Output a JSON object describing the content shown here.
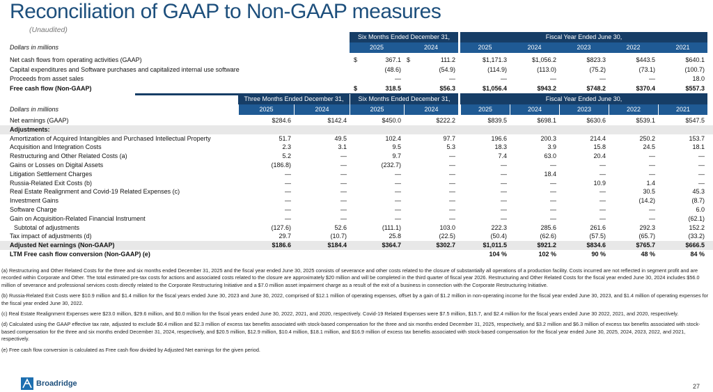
{
  "title": "Reconciliation of GAAP to Non-GAAP measures",
  "subtitle": "(Unaudited)",
  "table1": {
    "group_headers": {
      "six_months": "Six Months Ended December 31,",
      "fiscal_year": "Fiscal Year Ended June 30,"
    },
    "units_label": "Dollars in millions",
    "years": {
      "six_months": [
        "2025",
        "2024"
      ],
      "fiscal_year": [
        "2025",
        "2024",
        "2023",
        "2022",
        "2021"
      ]
    },
    "rows": [
      {
        "label": "Net cash flows from operating activities (GAAP)",
        "dollar": "$",
        "six_months": [
          "367.1",
          "111.2"
        ],
        "fiscal_year": [
          "$1,171.3",
          "$1,056.2",
          "$823.3",
          "$443.5",
          "$640.1"
        ]
      },
      {
        "label": "Capital expenditures and Software purchases and capitalized internal use software",
        "six_months": [
          "(48.6)",
          "(54.9)"
        ],
        "fiscal_year": [
          "(114.9)",
          "(113.0)",
          "(75.2)",
          "(73.1)",
          "(100.7)"
        ]
      },
      {
        "label": "Proceeds from asset sales",
        "six_months": [
          "—",
          "—"
        ],
        "fiscal_year": [
          "—",
          "—",
          "—",
          "—",
          "18.0"
        ]
      },
      {
        "label": "Free cash flow (Non-GAAP)",
        "bold": true,
        "dollar": "$",
        "six_months": [
          "318.5",
          "$56.3"
        ],
        "fiscal_year": [
          "$1,056.4",
          "$943.2",
          "$748.2",
          "$370.4",
          "$557.3"
        ]
      }
    ]
  },
  "table2": {
    "group_headers": {
      "three_months": "Three Months Ended December 31,",
      "six_months": "Six Months Ended December 31,",
      "fiscal_year": "Fiscal Year Ended June 30,"
    },
    "units_label": "Dollars in millions",
    "years": {
      "three_months": [
        "2025",
        "2024"
      ],
      "six_months": [
        "2025",
        "2024"
      ],
      "fiscal_year": [
        "2025",
        "2024",
        "2023",
        "2022",
        "2021"
      ]
    },
    "rows": [
      {
        "label": "Net earnings (GAAP)",
        "values": [
          "$284.6",
          "$142.4",
          "$450.0",
          "$222.2",
          "$839.5",
          "$698.1",
          "$630.6",
          "$539.1",
          "$547.5"
        ]
      },
      {
        "label": "Adjustments:",
        "bold": true,
        "shade": true,
        "values": []
      },
      {
        "label": "Amortization of Acquired Intangibles and Purchased Intellectual Property",
        "values": [
          "51.7",
          "49.5",
          "102.4",
          "97.7",
          "196.6",
          "200.3",
          "214.4",
          "250.2",
          "153.7"
        ]
      },
      {
        "label": "Acquisition and Integration Costs",
        "values": [
          "2.3",
          "3.1",
          "9.5",
          "5.3",
          "18.3",
          "3.9",
          "15.8",
          "24.5",
          "18.1"
        ]
      },
      {
        "label": "Restructuring and Other Related Costs (a)",
        "values": [
          "5.2",
          "—",
          "9.7",
          "—",
          "7.4",
          "63.0",
          "20.4",
          "—",
          "—"
        ]
      },
      {
        "label": "Gains or Losses on Digital Assets",
        "values": [
          "(186.8)",
          "—",
          "(232.7)",
          "—",
          "—",
          "—",
          "—",
          "—",
          "—"
        ]
      },
      {
        "label": "Litigation Settlement Charges",
        "values": [
          "—",
          "—",
          "—",
          "—",
          "—",
          "18.4",
          "—",
          "—",
          "—"
        ]
      },
      {
        "label": "Russia-Related Exit Costs (b)",
        "values": [
          "—",
          "—",
          "—",
          "—",
          "—",
          "—",
          "10.9",
          "1.4",
          "—"
        ]
      },
      {
        "label": "Real Estate Realignment and Covid-19 Related Expenses (c)",
        "values": [
          "—",
          "—",
          "—",
          "—",
          "—",
          "—",
          "—",
          "30.5",
          "45.3"
        ]
      },
      {
        "label": "Investment Gains",
        "values": [
          "—",
          "—",
          "—",
          "—",
          "—",
          "—",
          "—",
          "(14.2)",
          "(8.7)"
        ]
      },
      {
        "label": "Software Charge",
        "values": [
          "—",
          "—",
          "—",
          "—",
          "—",
          "—",
          "—",
          "—",
          "6.0"
        ]
      },
      {
        "label": "Gain on Acquisition-Related Financial Instrument",
        "values": [
          "—",
          "—",
          "—",
          "—",
          "—",
          "—",
          "—",
          "—",
          "(62.1)"
        ]
      },
      {
        "label": "Subtotal of adjustments",
        "indent": true,
        "values": [
          "(127.6)",
          "52.6",
          "(111.1)",
          "103.0",
          "222.3",
          "285.6",
          "261.6",
          "292.3",
          "152.2"
        ]
      },
      {
        "label": "Tax impact of adjustments (d)",
        "values": [
          "29.7",
          "(10.7)",
          "25.8",
          "(22.5)",
          "(50.4)",
          "(62.6)",
          "(57.5)",
          "(65.7)",
          "(33.2)"
        ]
      },
      {
        "label": "Adjusted Net earnings (Non-GAAP)",
        "bold": true,
        "shade": true,
        "values": [
          "$186.6",
          "$184.4",
          "$364.7",
          "$302.7",
          "$1,011.5",
          "$921.2",
          "$834.6",
          "$765.7",
          "$666.5"
        ]
      },
      {
        "label": "LTM Free cash flow conversion (Non-GAAP) (e)",
        "bold": true,
        "values": [
          "",
          "",
          "",
          "",
          "104 %",
          "102 %",
          "90 %",
          "48 %",
          "84 %"
        ]
      }
    ]
  },
  "footnotes": [
    "(a) Restructuring and Other Related Costs for the three and six months ended December 31, 2025 and the fiscal year ended June 30, 2025 consists of severance and other costs related to the closure of substantially all operations of a production facility. Costs incurred are not reflected in segment profit and are recorded within Corporate and Other. The total estimated pre-tax costs for actions and associated costs related to the closure are approximately $20 million and will be completed in the third quarter of fiscal year 2026. Restructuring and Other Related Costs for the fiscal year ended June 30, 2024 includes $56.0 million of severance and professional services costs directly related to the Corporate Restructuring Initiative and a $7.0 million asset impairment charge as a result of the exit of a business in connection with the Corporate Restructuring Initiative.",
    "(b) Russia-Related Exit Costs were $10.9 million and $1.4 million for the fiscal years ended June 30, 2023 and June 30, 2022, comprised of $12.1 million of operating expenses, offset by a gain of $1.2 million in non-operating income for the fiscal year ended June 30, 2023, and $1.4 million of operating expenses for the fiscal year ended June 30, 2022.",
    "(c) Real Estate Realignment Expenses were $23.0 million, $29.6 million, and $0.0 million for the fiscal years ended June 30, 2022, 2021, and 2020, respectively. Covid-19 Related Expenses were $7.5 million, $15.7, and $2.4 million for the fiscal years ended June 30 2022, 2021, and 2020, respectively.",
    "(d) Calculated using the GAAP effective tax rate, adjusted to exclude $0.4 million and $2.3 million of excess tax benefits associated with stock-based compensation for the three and six months ended December 31, 2025, respectively, and $3.2 million and $6.3 million of excess tax benefits associated with stock-based compensation for the three and six months ended December 31, 2024, respectively, and $20.5 million, $12.9 million, $10.4 million, $18.1 million, and $16.9 million of excess tax benefits associated with stock-based compensation for the fiscal year ended June 30, 2025, 2024, 2023, 2022, and 2021, respectively.",
    "(e) Free cash flow conversion is calculated as Free cash flow divided by Adjusted Net earnings for the given period."
  ],
  "logo_text": "Broadridge",
  "page_number": "27",
  "colors": {
    "title": "#1d4f7c",
    "header_dark": "#163d66",
    "header_mid": "#1f5a94",
    "shade": "#e8e8e8"
  }
}
